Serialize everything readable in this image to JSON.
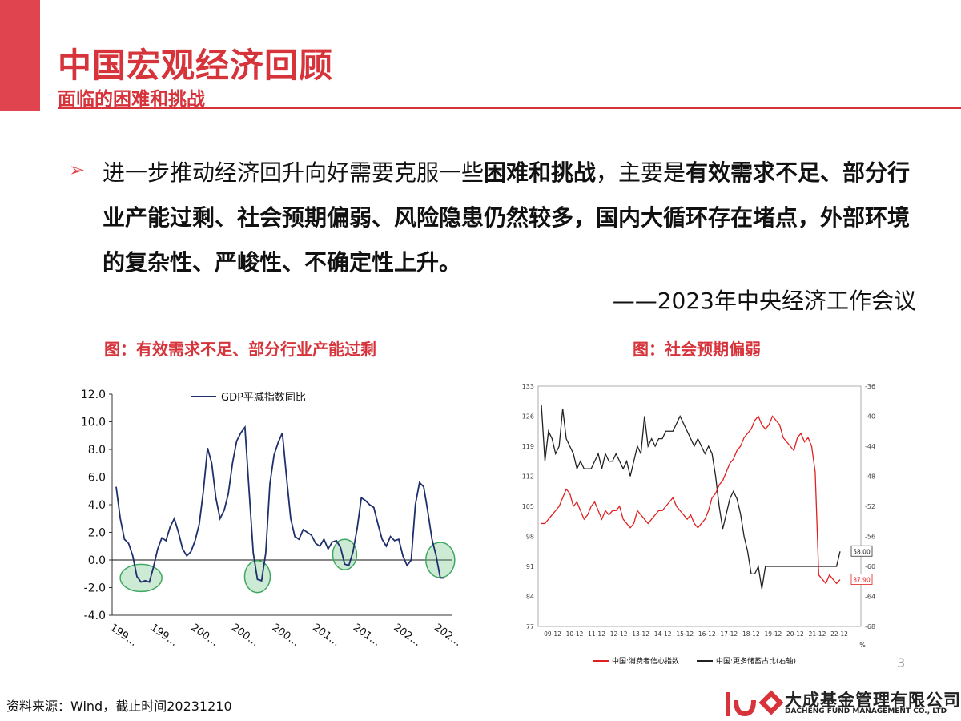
{
  "header": {
    "title": "中国宏观经济回顾",
    "subtitle": "面临的困难和挑战"
  },
  "body": {
    "bullet": "➢",
    "t1": "进一步推动经济回升向好需要克服一些",
    "t2": "困难和挑战",
    "t3": "，主要是",
    "t4": "有效需求不足、部分行业产能过剩、社会预期偏弱、风险隐患仍然较多，国内大循环存在堵点，外部环境的复杂性、严峻性、不确定性上升。",
    "quote": "——2023年中央经济工作会议"
  },
  "captions": {
    "left": "图：有效需求不足、部分行业产能过剩",
    "right": "图：社会预期偏弱"
  },
  "footer": {
    "source": "资料来源：Wind，截止时间20231210",
    "company_cn": "大成基金管理有限公司",
    "company_en": "DACHENG FUND MANAGEMENT CO., LTD",
    "page": "3"
  },
  "colors": {
    "accent": "#d6333b",
    "navy": "#1f2f6e",
    "red": "#e02020",
    "green": "#6fc386"
  },
  "chart_data": [
    {
      "type": "line",
      "series": [
        {
          "name": "GDP平减指数同比",
          "values": [
            5.3,
            3.0,
            1.5,
            1.2,
            0.3,
            -1.2,
            -1.6,
            -1.5,
            -1.6,
            -0.5,
            0.8,
            1.6,
            1.4,
            2.4,
            3.0,
            2.0,
            0.8,
            0.3,
            0.6,
            1.4,
            2.6,
            5.0,
            8.1,
            7.0,
            4.5,
            3.0,
            3.6,
            4.8,
            7.0,
            8.6,
            9.2,
            9.6,
            5.0,
            0.5,
            -1.4,
            -1.5,
            0.5,
            5.5,
            7.6,
            8.5,
            9.2,
            6.0,
            3.0,
            1.7,
            1.5,
            2.2,
            2.0,
            1.8,
            1.2,
            1.0,
            1.5,
            0.8,
            1.3,
            1.4,
            0.9,
            -0.3,
            -0.4,
            0.6,
            2.3,
            4.5,
            4.3,
            4.0,
            3.8,
            2.6,
            1.5,
            1.0,
            1.7,
            1.4,
            1.5,
            0.3,
            -0.4,
            0.0,
            4.0,
            5.6,
            5.3,
            3.5,
            1.5,
            0.3,
            -1.3,
            -1.3
          ]
        }
      ],
      "x_tick_labels": [
        "199…",
        "199…",
        "200…",
        "200…",
        "200…",
        "201…",
        "201…",
        "202…",
        "202…"
      ],
      "y_ticks": [
        "12.0",
        "10.0",
        "8.0",
        "6.0",
        "4.0",
        "2.0",
        "0.0",
        "-2.0",
        "-4.0"
      ],
      "ylim": [
        -4,
        12
      ],
      "highlight_ellipses": 4
    },
    {
      "type": "line",
      "x_tick_labels": [
        "09-12",
        "10-12",
        "11-12",
        "12-12",
        "13-12",
        "14-12",
        "15-12",
        "16-12",
        "17-12",
        "18-12",
        "19-12",
        "20-12",
        "21-12",
        "22-12"
      ],
      "y_left_ticks": [
        "133",
        "126",
        "119",
        "112",
        "105",
        "98",
        "91",
        "84",
        "77"
      ],
      "y_right_ticks": [
        "-36",
        "-40",
        "-44",
        "-48",
        "-52",
        "-56",
        "-60",
        "-64",
        "-68"
      ],
      "ylim_left": [
        77,
        133
      ],
      "ylim_right": [
        -68,
        -36
      ],
      "right_axis_unit": "%",
      "series": [
        {
          "name": "中国:消费者信心指数",
          "axis": "left",
          "values": [
            101,
            101,
            102,
            103,
            104,
            105,
            107,
            109,
            108,
            105,
            106,
            104,
            102,
            103,
            105,
            106,
            104,
            102,
            104,
            103,
            104,
            104,
            105,
            102,
            101,
            100,
            101,
            104,
            103,
            102,
            101,
            102,
            103,
            104,
            104,
            105,
            106,
            107,
            105,
            104,
            103,
            102,
            103,
            101,
            100,
            101,
            102,
            104,
            107,
            108,
            110,
            111,
            113,
            115,
            116,
            118,
            119,
            121,
            122,
            123,
            125,
            126,
            124,
            123,
            124,
            126,
            125,
            124,
            121,
            120,
            119,
            118,
            121,
            122,
            120,
            121,
            119,
            113,
            89,
            88,
            87,
            89,
            88,
            87,
            87.9
          ],
          "end_label": "87.90"
        },
        {
          "name": "中国:更多储蓄占比(右轴)",
          "axis": "right",
          "values": [
            -38.5,
            -46,
            -42,
            -43,
            -45,
            -44,
            -39,
            -43,
            -44,
            -45,
            -47,
            -46,
            -47,
            -47,
            -47,
            -46,
            -45,
            -47,
            -45,
            -46,
            -46,
            -45,
            -46,
            -47,
            -46,
            -48,
            -46,
            -44,
            -45,
            -40,
            -44,
            -43,
            -44,
            -43,
            -43,
            -42,
            -42,
            -42,
            -41,
            -40,
            -41,
            -42,
            -43,
            -44,
            -43,
            -44,
            -45,
            -44,
            -45,
            -48,
            -52,
            -55,
            -53,
            -51,
            -50,
            -51,
            -53,
            -56,
            -58,
            -61,
            -61,
            -60,
            -63,
            -60,
            -60,
            -60,
            -60,
            -60,
            -60,
            -60,
            -60,
            -60,
            -60,
            -60,
            -60,
            -60,
            -60,
            -60,
            -60,
            -60,
            -60,
            -60,
            -60,
            -60,
            -58
          ],
          "end_label": "58.00"
        }
      ]
    }
  ]
}
